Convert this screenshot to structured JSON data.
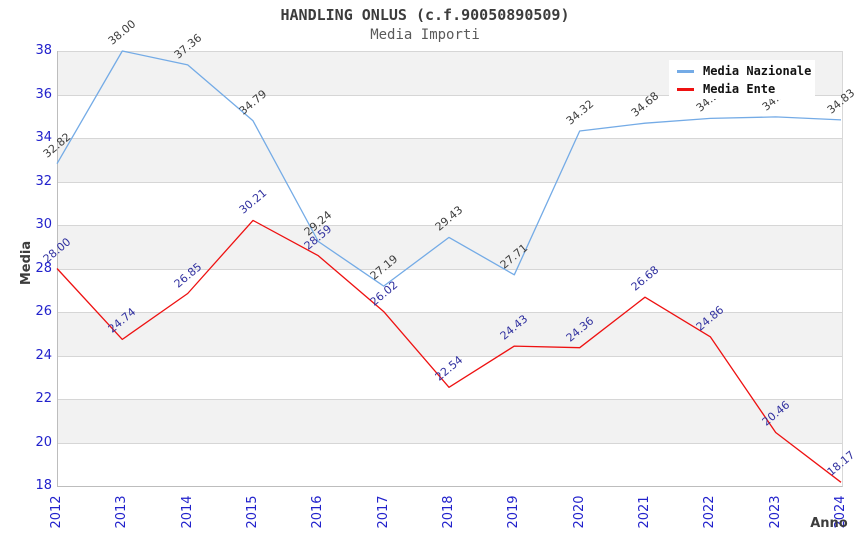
{
  "title": "HANDLING ONLUS (c.f.90050890509)",
  "subtitle": "Media Importi",
  "legend": {
    "items": [
      {
        "label": "Media Nazionale",
        "color": "#74abe6"
      },
      {
        "label": "Media Ente",
        "color": "#ee1111"
      }
    ]
  },
  "chart_data": {
    "type": "line",
    "title": "HANDLING ONLUS (c.f.90050890509)",
    "subtitle": "Media Importi",
    "xlabel": "Anno",
    "ylabel": "Media",
    "x": [
      2012,
      2013,
      2014,
      2015,
      2016,
      2017,
      2018,
      2019,
      2020,
      2021,
      2022,
      2023,
      2024
    ],
    "ylim": [
      18,
      38
    ],
    "ytick_step": 2,
    "grid": true,
    "legend_position": "top-right",
    "band_colors": [
      "#f2f2f2",
      "#ffffff"
    ],
    "series": [
      {
        "name": "Media Nazionale",
        "color": "#74abe6",
        "label_color": "#3d3d3d",
        "values": [
          32.82,
          38.0,
          37.36,
          34.79,
          29.24,
          27.19,
          29.43,
          27.71,
          34.32,
          34.68,
          34.9,
          34.97,
          34.83
        ]
      },
      {
        "name": "Media Ente",
        "color": "#ee1111",
        "label_color": "#30309f",
        "values": [
          28.0,
          24.74,
          26.85,
          30.21,
          28.59,
          26.02,
          22.54,
          24.43,
          24.36,
          26.68,
          24.86,
          20.46,
          18.17
        ]
      }
    ]
  },
  "colors": {
    "axis_tick": "#2222cc",
    "grid": "#d6d6d6",
    "band": "#f2f2f2",
    "plot_border": "#bdbdbd"
  }
}
